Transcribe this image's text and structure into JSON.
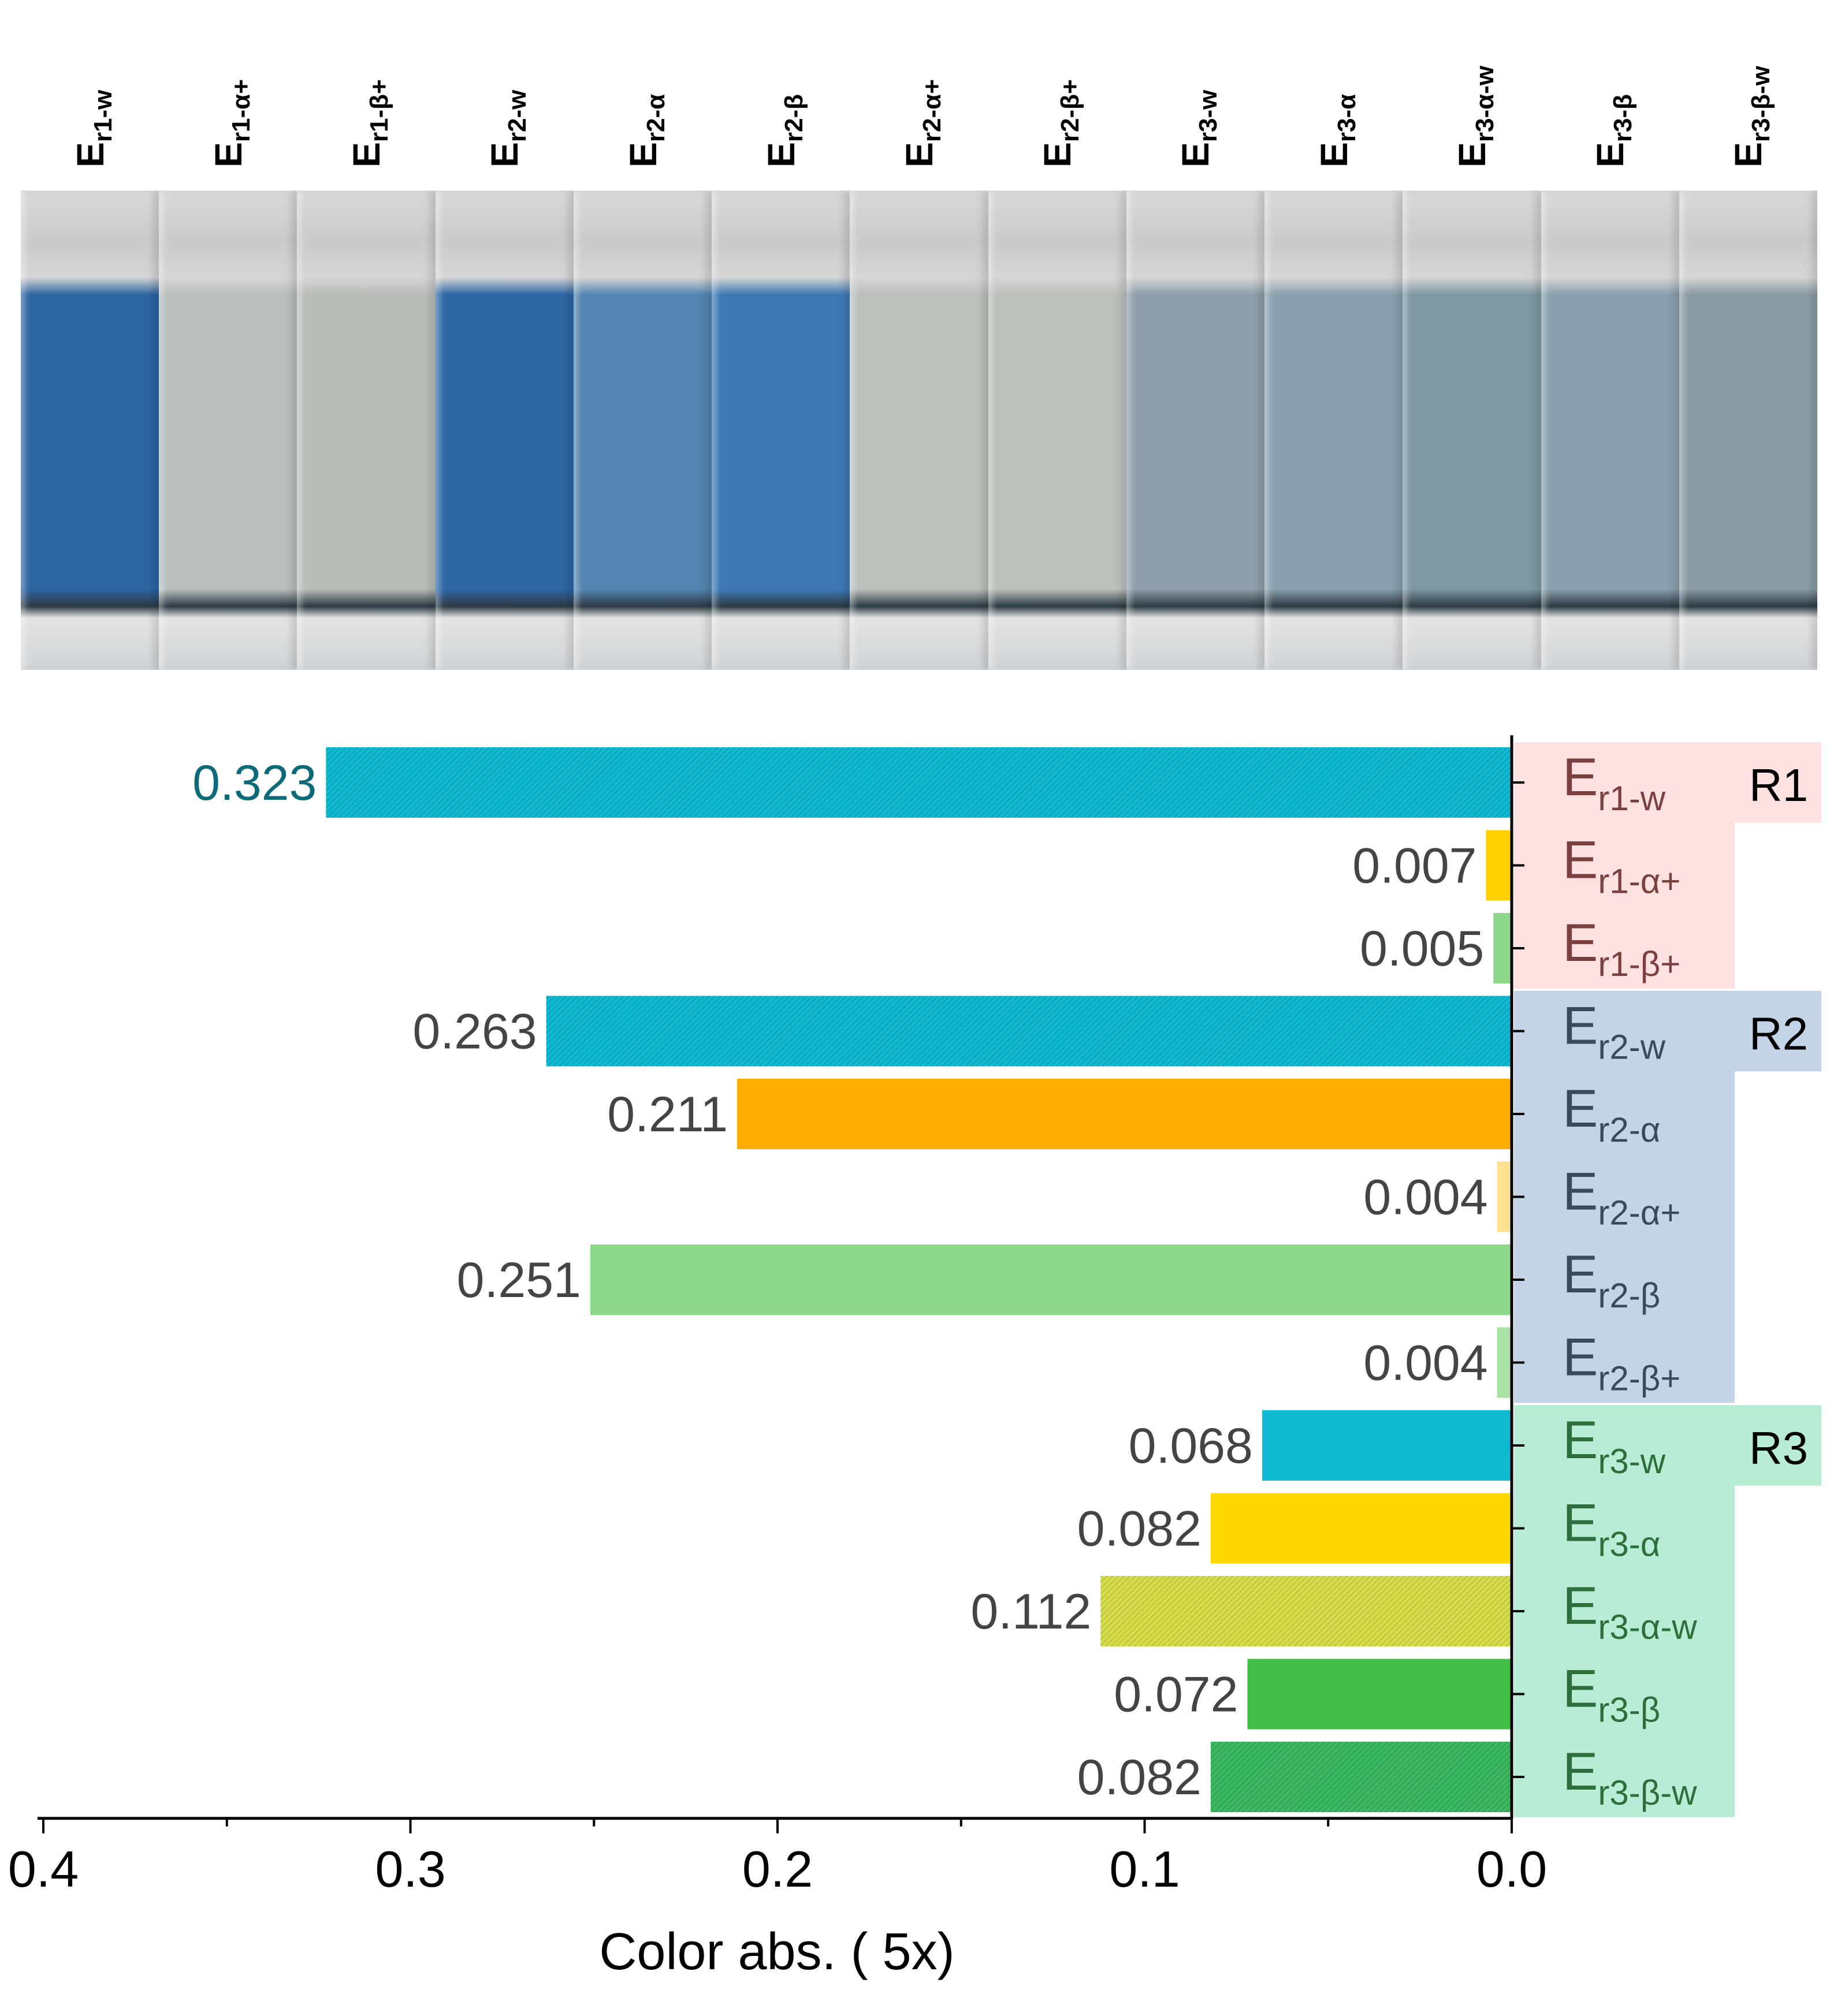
{
  "photo": {
    "labels": [
      {
        "base": "E",
        "sub": "r1-w"
      },
      {
        "base": "E",
        "sub": "r1-α+"
      },
      {
        "base": "E",
        "sub": "r1-β+"
      },
      {
        "base": "E",
        "sub": "r2-w"
      },
      {
        "base": "E",
        "sub": "r2-α"
      },
      {
        "base": "E",
        "sub": "r2-β"
      },
      {
        "base": "E",
        "sub": "r2-α+"
      },
      {
        "base": "E",
        "sub": "r2-β+"
      },
      {
        "base": "E",
        "sub": "r3-w"
      },
      {
        "base": "E",
        "sub": "r3-α"
      },
      {
        "base": "E",
        "sub": "r3-α-w"
      },
      {
        "base": "E",
        "sub": "r3-β"
      },
      {
        "base": "E",
        "sub": "r3-β-w"
      }
    ],
    "liquid_colors": [
      "#2d64a2",
      "#b9bfbc",
      "#b9bdb8",
      "#2e66a6",
      "#5485b0",
      "#3e79b6",
      "#bcc0bb",
      "#bcc0ba",
      "#8f9fab",
      "#8aa0ae",
      "#7d98a2",
      "#8aa0ae",
      "#8a9ca3"
    ]
  },
  "chart_data": {
    "type": "bar",
    "orientation": "horizontal",
    "x_direction": "reversed",
    "xlabel": "Color abs. ( 5x)",
    "xlim": [
      0.4,
      0.0
    ],
    "x_ticks": [
      "0.4",
      "0.3",
      "0.2",
      "0.1",
      "0.0"
    ],
    "categories": [
      {
        "base": "E",
        "sub": "r1-w",
        "value": 0.323,
        "label": "0.323",
        "color": "#10b9d2",
        "hatch": true,
        "label_color": "#0d6a79"
      },
      {
        "base": "E",
        "sub": "r1-α+",
        "value": 0.007,
        "label": "0.007",
        "color": "#ffd100",
        "hatch": false,
        "label_color": "#444444"
      },
      {
        "base": "E",
        "sub": "r1-β+",
        "value": 0.005,
        "label": "0.005",
        "color": "#8ed88a",
        "hatch": false,
        "label_color": "#444444"
      },
      {
        "base": "E",
        "sub": "r2-w",
        "value": 0.263,
        "label": "0.263",
        "color": "#10b9d2",
        "hatch": true,
        "label_color": "#444444"
      },
      {
        "base": "E",
        "sub": "r2-α",
        "value": 0.211,
        "label": "0.211",
        "color": "#ffad00",
        "hatch": false,
        "label_color": "#444444"
      },
      {
        "base": "E",
        "sub": "r2-α+",
        "value": 0.004,
        "label": "0.004",
        "color": "#ffe090",
        "hatch": false,
        "label_color": "#444444"
      },
      {
        "base": "E",
        "sub": "r2-β",
        "value": 0.251,
        "label": "0.251",
        "color": "#8ed88a",
        "hatch": false,
        "label_color": "#444444"
      },
      {
        "base": "E",
        "sub": "r2-β+",
        "value": 0.004,
        "label": "0.004",
        "color": "#a9e2a4",
        "hatch": false,
        "label_color": "#444444"
      },
      {
        "base": "E",
        "sub": "r3-w",
        "value": 0.068,
        "label": "0.068",
        "color": "#10b9d2",
        "hatch": false,
        "label_color": "#444444"
      },
      {
        "base": "E",
        "sub": "r3-α",
        "value": 0.082,
        "label": "0.082",
        "color": "#ffd800",
        "hatch": false,
        "label_color": "#444444"
      },
      {
        "base": "E",
        "sub": "r3-α-w",
        "value": 0.112,
        "label": "0.112",
        "color": "#d6dc4a",
        "hatch": true,
        "label_color": "#444444"
      },
      {
        "base": "E",
        "sub": "r3-β",
        "value": 0.072,
        "label": "0.072",
        "color": "#43bf48",
        "hatch": false,
        "label_color": "#444444"
      },
      {
        "base": "E",
        "sub": "r3-β-w",
        "value": 0.082,
        "label": "0.082",
        "color": "#3ab760",
        "hatch": true,
        "label_color": "#444444"
      }
    ],
    "groups": [
      {
        "name": "R1",
        "first": 0,
        "last": 2,
        "color": "#fde0e0",
        "text_color": "#7a4040"
      },
      {
        "name": "R2",
        "first": 3,
        "last": 7,
        "color": "#c2d4e6",
        "text_color": "#3a4a5e"
      },
      {
        "name": "R3",
        "first": 8,
        "last": 12,
        "color": "#b8ecd4",
        "text_color": "#2d6e3c"
      }
    ]
  }
}
